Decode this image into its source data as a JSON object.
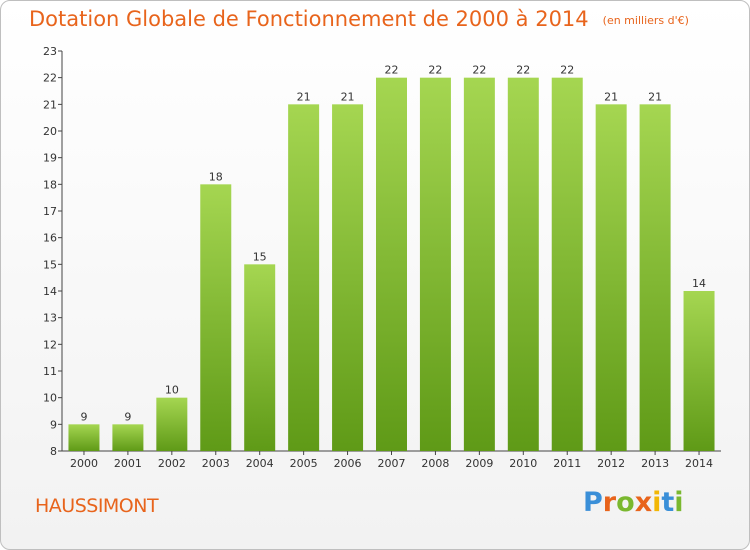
{
  "header": {
    "title": "Dotation Globale de Fonctionnement de 2000 à 2014",
    "unit": "(en milliers d'€)"
  },
  "footer": {
    "commune": "HAUSSIMONT",
    "logo": "Proxiti",
    "logo_colors": [
      "#3a8fd8",
      "#e8641c",
      "#7ab82f",
      "#e8641c",
      "#f2b705",
      "#3a8fd8",
      "#7ab82f"
    ]
  },
  "colors": {
    "bar_top": "#a5d651",
    "bar_bottom": "#5f9a17",
    "title": "#e8641c",
    "axis": "#444444",
    "grid": "#d9d9d9"
  },
  "chart_data": {
    "type": "bar",
    "categories": [
      "2000",
      "2001",
      "2002",
      "2003",
      "2004",
      "2005",
      "2006",
      "2007",
      "2008",
      "2009",
      "2010",
      "2011",
      "2012",
      "2013",
      "2014"
    ],
    "values": [
      9,
      9,
      10,
      18,
      15,
      21,
      21,
      22,
      22,
      22,
      22,
      22,
      21,
      21,
      14
    ],
    "ylim": [
      8,
      23
    ],
    "yticks": [
      8,
      9,
      10,
      11,
      12,
      13,
      14,
      15,
      16,
      17,
      18,
      19,
      20,
      21,
      22,
      23
    ],
    "grid": false
  }
}
